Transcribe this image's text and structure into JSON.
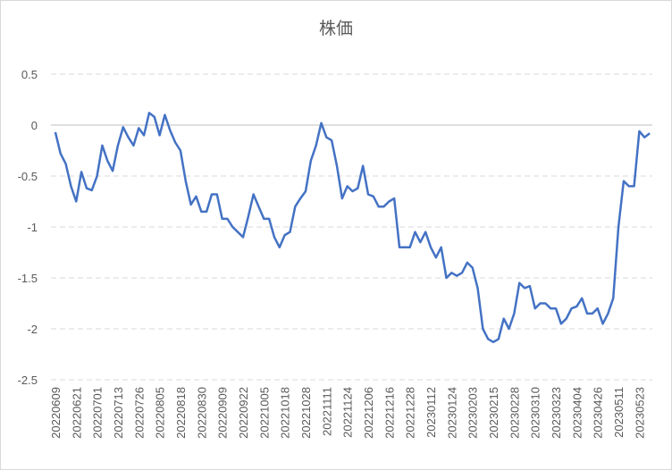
{
  "chart_data": {
    "type": "line",
    "title": "株価",
    "categories": [
      "20220609",
      null,
      null,
      null,
      "20220621",
      null,
      null,
      null,
      "20220701",
      null,
      null,
      null,
      "20220713",
      null,
      null,
      null,
      "20220726",
      null,
      null,
      null,
      "20220805",
      null,
      null,
      null,
      "20220818",
      null,
      null,
      null,
      "20220830",
      null,
      null,
      null,
      "20220909",
      null,
      null,
      null,
      "20220922",
      null,
      null,
      null,
      "20221005",
      null,
      null,
      null,
      "20221018",
      null,
      null,
      null,
      "20221028",
      null,
      null,
      null,
      "20221111",
      null,
      null,
      null,
      "20221124",
      null,
      null,
      null,
      "20221206",
      null,
      null,
      null,
      "20221216",
      null,
      null,
      null,
      "20221228",
      null,
      null,
      null,
      "20230112",
      null,
      null,
      null,
      "20230124",
      null,
      null,
      null,
      "20230203",
      null,
      null,
      null,
      "20230215",
      null,
      null,
      null,
      "20230228",
      null,
      null,
      null,
      "20230310",
      null,
      null,
      null,
      "20230323",
      null,
      null,
      null,
      "20230404",
      null,
      null,
      null,
      "20230426",
      null,
      null,
      null,
      "20230511",
      null,
      null,
      null,
      "20230523",
      null,
      null
    ],
    "values": [
      -0.07,
      -0.28,
      -0.38,
      -0.6,
      -0.75,
      -0.46,
      -0.62,
      -0.64,
      -0.5,
      -0.2,
      -0.35,
      -0.45,
      -0.2,
      -0.02,
      -0.12,
      -0.2,
      -0.03,
      -0.1,
      0.12,
      0.08,
      -0.1,
      0.1,
      -0.05,
      -0.17,
      -0.25,
      -0.55,
      -0.78,
      -0.7,
      -0.85,
      -0.85,
      -0.68,
      -0.68,
      -0.92,
      -0.92,
      -1.0,
      -1.05,
      -1.1,
      -0.9,
      -0.68,
      -0.8,
      -0.92,
      -0.92,
      -1.1,
      -1.2,
      -1.08,
      -1.05,
      -0.8,
      -0.72,
      -0.65,
      -0.35,
      -0.2,
      0.02,
      -0.12,
      -0.15,
      -0.4,
      -0.72,
      -0.6,
      -0.65,
      -0.62,
      -0.4,
      -0.68,
      -0.7,
      -0.8,
      -0.8,
      -0.75,
      -0.72,
      -1.2,
      -1.2,
      -1.2,
      -1.05,
      -1.15,
      -1.05,
      -1.2,
      -1.3,
      -1.2,
      -1.5,
      -1.45,
      -1.48,
      -1.45,
      -1.35,
      -1.4,
      -1.6,
      -2.0,
      -2.1,
      -2.13,
      -2.1,
      -1.9,
      -2.0,
      -1.85,
      -1.55,
      -1.6,
      -1.58,
      -1.8,
      -1.75,
      -1.75,
      -1.8,
      -1.8,
      -1.95,
      -1.9,
      -1.8,
      -1.78,
      -1.7,
      -1.85,
      -1.85,
      -1.8,
      -1.95,
      -1.85,
      -1.7,
      -1.0,
      -0.55,
      -0.6,
      -0.6,
      -0.06,
      -0.12,
      -0.08
    ],
    "color": "#4472c4",
    "ylim": [
      -2.5,
      0.5
    ],
    "yticks": [
      0.5,
      0,
      -0.5,
      -1,
      -1.5,
      -2,
      -2.5
    ],
    "grid": true
  }
}
